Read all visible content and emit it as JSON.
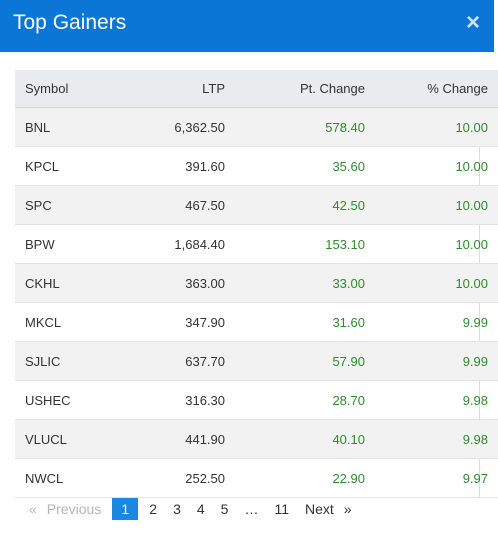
{
  "header": {
    "title": "Top Gainers",
    "close_glyph": "×"
  },
  "table": {
    "columns": [
      "Symbol",
      "LTP",
      "Pt. Change",
      "% Change"
    ],
    "rows": [
      {
        "symbol": "BNL",
        "ltp": "6,362.50",
        "pt": "578.40",
        "pct": "10.00"
      },
      {
        "symbol": "KPCL",
        "ltp": "391.60",
        "pt": "35.60",
        "pct": "10.00"
      },
      {
        "symbol": "SPC",
        "ltp": "467.50",
        "pt": "42.50",
        "pct": "10.00"
      },
      {
        "symbol": "BPW",
        "ltp": "1,684.40",
        "pt": "153.10",
        "pct": "10.00"
      },
      {
        "symbol": "CKHL",
        "ltp": "363.00",
        "pt": "33.00",
        "pct": "10.00"
      },
      {
        "symbol": "MKCL",
        "ltp": "347.90",
        "pt": "31.60",
        "pct": "9.99"
      },
      {
        "symbol": "SJLIC",
        "ltp": "637.70",
        "pt": "57.90",
        "pct": "9.99"
      },
      {
        "symbol": "USHEC",
        "ltp": "316.30",
        "pt": "28.70",
        "pct": "9.98"
      },
      {
        "symbol": "VLUCL",
        "ltp": "441.90",
        "pt": "40.10",
        "pct": "9.98"
      },
      {
        "symbol": "NWCL",
        "ltp": "252.50",
        "pt": "22.90",
        "pct": "9.97"
      }
    ]
  },
  "pagination": {
    "prev_glyph": "«",
    "prev_label": "Previous",
    "pages": [
      "1",
      "2",
      "3",
      "4",
      "5"
    ],
    "ellipsis": "…",
    "last": "11",
    "next_label": "Next",
    "next_glyph": "»"
  },
  "colors": {
    "header": "#0b76d6",
    "positive": "#2e8b2e",
    "active_page": "#1a87e0"
  }
}
